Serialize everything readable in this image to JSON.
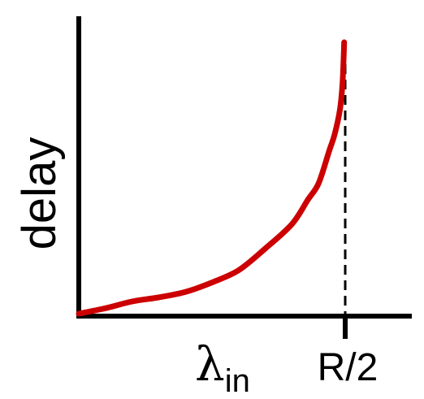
{
  "chart_data": {
    "type": "line",
    "title": "",
    "ylabel": "delay",
    "xlabel": {
      "symbol": "λ",
      "subscript": "in"
    },
    "x_ticks": [
      {
        "value": 0.5,
        "label": "R/2"
      }
    ],
    "xlim": [
      0,
      0.625
    ],
    "ylim": [
      0,
      1.0
    ],
    "asymptote": {
      "x": 0.5,
      "style": "dashed",
      "color": "#000000"
    },
    "grid": false,
    "legend": "none",
    "series": [
      {
        "color": "#cc0000",
        "x": [
          0.0,
          0.05,
          0.1,
          0.15,
          0.2,
          0.25,
          0.3,
          0.35,
          0.4,
          0.43,
          0.45,
          0.47,
          0.48,
          0.49,
          0.495,
          0.498
        ],
        "y": [
          0.0,
          0.02,
          0.045,
          0.06,
          0.08,
          0.115,
          0.16,
          0.24,
          0.33,
          0.42,
          0.48,
          0.6,
          0.66,
          0.75,
          0.85,
          1.0
        ]
      }
    ]
  }
}
